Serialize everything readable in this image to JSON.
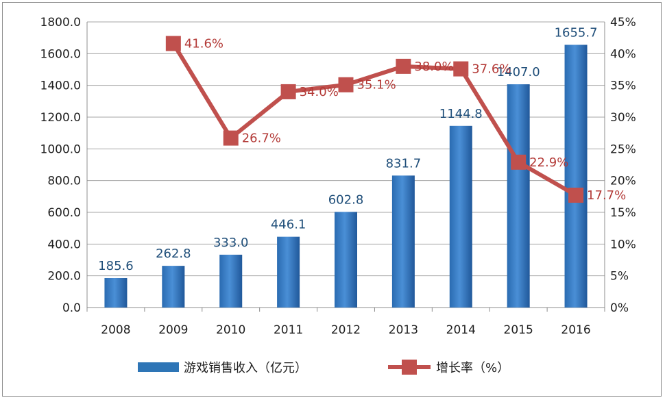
{
  "chart_data": {
    "type": "bar",
    "categories": [
      "2008",
      "2009",
      "2010",
      "2011",
      "2012",
      "2013",
      "2014",
      "2015",
      "2016"
    ],
    "series": [
      {
        "name": "游戏销售收入（亿元）",
        "type": "bar",
        "axis": "left",
        "values": [
          185.6,
          262.8,
          333.0,
          446.1,
          602.8,
          831.7,
          1144.8,
          1407.0,
          1655.7
        ],
        "labels": [
          "185.6",
          "262.8",
          "333.0",
          "446.1",
          "602.8",
          "831.7",
          "1144.8",
          "1407.0",
          "1655.7"
        ],
        "color": "#2e75b6"
      },
      {
        "name": "增长率（%）",
        "type": "line",
        "axis": "right",
        "values": [
          null,
          41.6,
          26.7,
          34.0,
          35.1,
          38.0,
          37.6,
          22.9,
          17.7
        ],
        "labels": [
          "",
          "41.6%",
          "26.7%",
          "34.0%",
          "35.1%",
          "38.0%",
          "37.6%",
          "22.9%",
          "17.7%"
        ],
        "color": "#c0504d"
      }
    ],
    "y_left": {
      "min": 0,
      "max": 1800,
      "ticks": [
        "0.0",
        "200.0",
        "400.0",
        "600.0",
        "800.0",
        "1000.0",
        "1200.0",
        "1400.0",
        "1600.0",
        "1800.0"
      ]
    },
    "y_right": {
      "min": 0,
      "max": 45,
      "ticks": [
        "0%",
        "5%",
        "10%",
        "15%",
        "20%",
        "25%",
        "30%",
        "35%",
        "40%",
        "45%"
      ]
    },
    "grid": true,
    "legend": "bottom"
  }
}
